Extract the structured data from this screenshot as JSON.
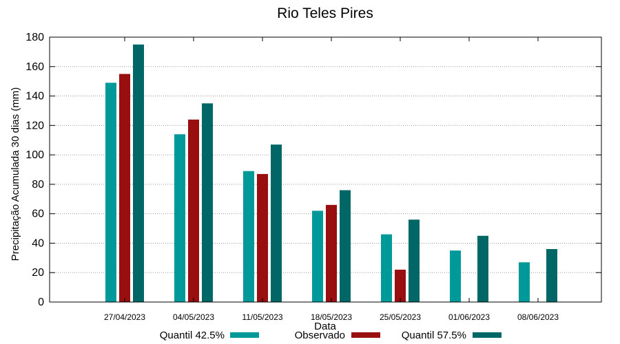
{
  "chart_data": {
    "type": "bar",
    "title": "Rio Teles Pires",
    "xlabel": "Data",
    "ylabel": "Precipitação Acumulada 30 dias (mm)",
    "ylim": [
      0,
      180
    ],
    "yticks": [
      0,
      20,
      40,
      60,
      80,
      100,
      120,
      140,
      160,
      180
    ],
    "grid": true,
    "legend_position": "bottom",
    "categories": [
      "27/04/2023",
      "04/05/2023",
      "11/05/2023",
      "18/05/2023",
      "25/05/2023",
      "01/06/2023",
      "08/06/2023"
    ],
    "series": [
      {
        "name": "Quantil 42.5%",
        "color": "#009999",
        "values": [
          149,
          114,
          89,
          62,
          46,
          35,
          27
        ]
      },
      {
        "name": "Observado",
        "color": "#990f0f",
        "values": [
          155,
          124,
          87,
          66,
          22,
          null,
          null
        ]
      },
      {
        "name": "Quantil 57.5%",
        "color": "#006666",
        "values": [
          175,
          135,
          107,
          76,
          56,
          45,
          36
        ]
      }
    ]
  }
}
